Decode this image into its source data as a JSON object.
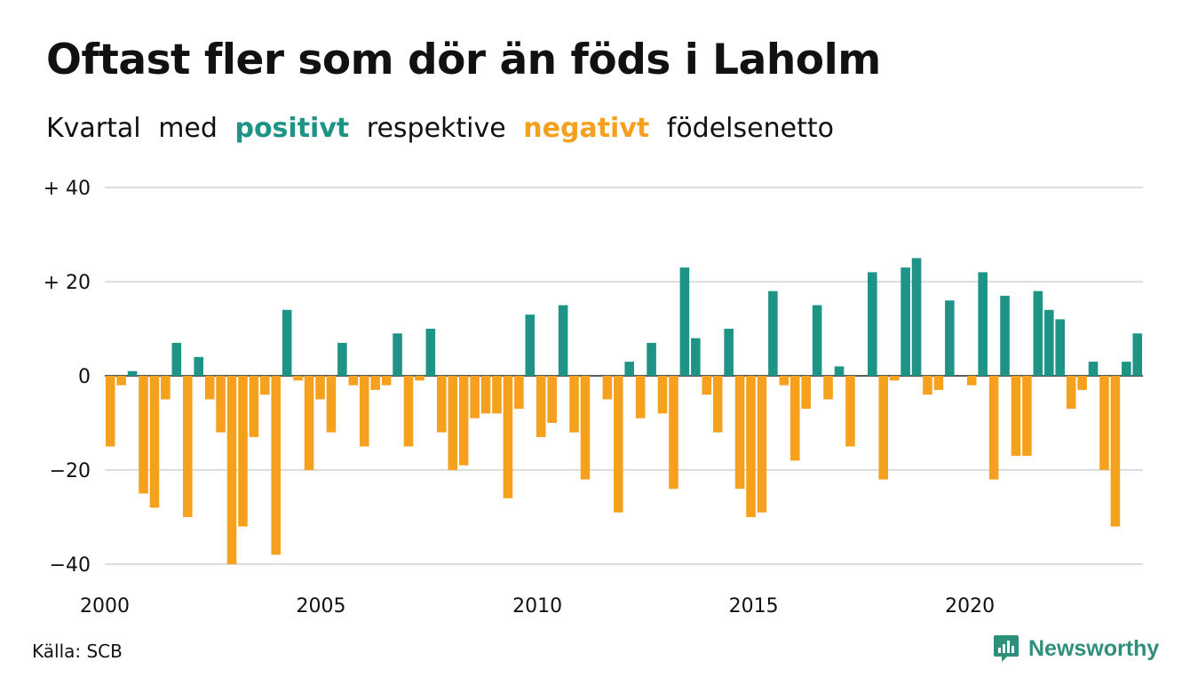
{
  "title": "Oftast fler som dör än föds i Laholm",
  "subtitle": {
    "w1": "Kvartal",
    "w2": "med",
    "positive": "positivt",
    "w3": "respektive",
    "negative": "negativt",
    "w4": "födelsenetto"
  },
  "colors": {
    "positive": "#1d9485",
    "negative": "#f5a11e",
    "grid": "#dddddd",
    "brand": "#2e8f7a"
  },
  "source": "Källa: SCB",
  "brand": {
    "name": "Newsworthy",
    "icon": "bar-chart-bubble-icon"
  },
  "chart_data": {
    "type": "bar",
    "title": "Oftast fler som dör än föds i Laholm",
    "xlabel": "",
    "ylabel": "",
    "ylim": [
      -40,
      40
    ],
    "yticks": [
      {
        "value": 40,
        "label": "+ 40"
      },
      {
        "value": 20,
        "label": "+ 20"
      },
      {
        "value": 0,
        "label": "0"
      },
      {
        "value": -20,
        "label": "−20"
      },
      {
        "value": -40,
        "label": "−40"
      }
    ],
    "xticks": [
      "2000",
      "2005",
      "2010",
      "2015",
      "2020"
    ],
    "xrange": [
      2000,
      2024
    ],
    "grid": true,
    "legend": "none",
    "series": [
      {
        "values": [
          -15,
          -2,
          1,
          -25,
          -28,
          -5,
          7,
          -30,
          4,
          -5,
          -12,
          -40,
          -32,
          -13,
          -4,
          -38,
          14,
          -1,
          -20,
          -5,
          -12,
          7,
          -2,
          -15,
          -3,
          -2,
          9,
          -15,
          -1,
          10,
          -12,
          -20,
          -19,
          -9,
          -8,
          -8,
          -26,
          -7,
          13,
          -13,
          -10,
          15,
          -12,
          -22,
          0,
          -5,
          -29,
          3,
          -9,
          7,
          -8,
          -24,
          23,
          8,
          -4,
          -12,
          10,
          -24,
          -30,
          -29,
          18,
          -2,
          -18,
          -7,
          15,
          -5,
          2,
          -15,
          0,
          22,
          -22,
          -1,
          23,
          25,
          -4,
          -3,
          16,
          0,
          -2,
          22,
          -22,
          17,
          -17,
          -17,
          18,
          14,
          12,
          -7,
          -3,
          3,
          -20,
          -32,
          3,
          9
        ]
      }
    ]
  }
}
